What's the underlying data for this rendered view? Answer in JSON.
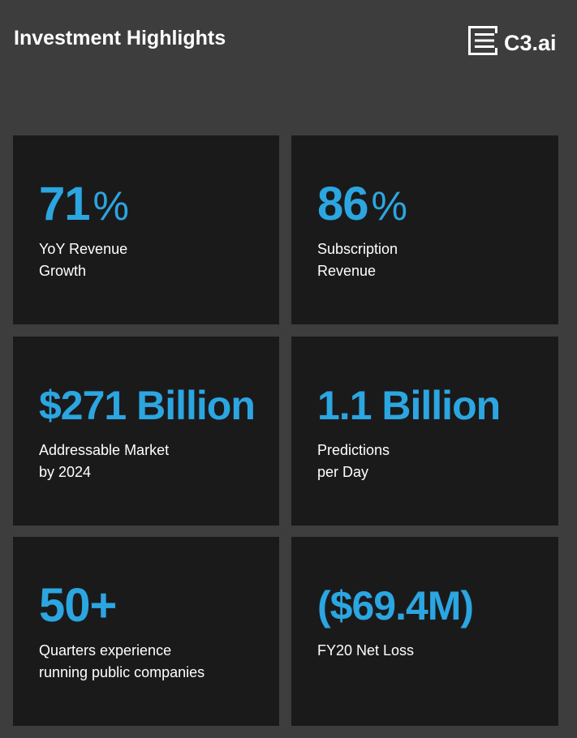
{
  "header": {
    "title": "Investment Highlights",
    "logo_text": "C3.ai"
  },
  "colors": {
    "background": "#3d3d3e",
    "card": "#1b1a1b",
    "accent": "#2ba6e1",
    "text": "#ffffff"
  },
  "cards": [
    {
      "value": "71",
      "unit": "%",
      "line1": "YoY Revenue",
      "line2": "Growth"
    },
    {
      "value": "86",
      "unit": "%",
      "line1": "Subscription",
      "line2": "Revenue"
    },
    {
      "value": "$271 Billion",
      "line1": "Addressable Market",
      "line2": "by 2024"
    },
    {
      "value": "1.1 Billion",
      "line1": "Predictions",
      "line2": "per Day"
    },
    {
      "value": "50+",
      "line1": "Quarters experience",
      "line2": "running public companies"
    },
    {
      "value": "($69.4M)",
      "line1": "FY20 Net Loss"
    }
  ]
}
